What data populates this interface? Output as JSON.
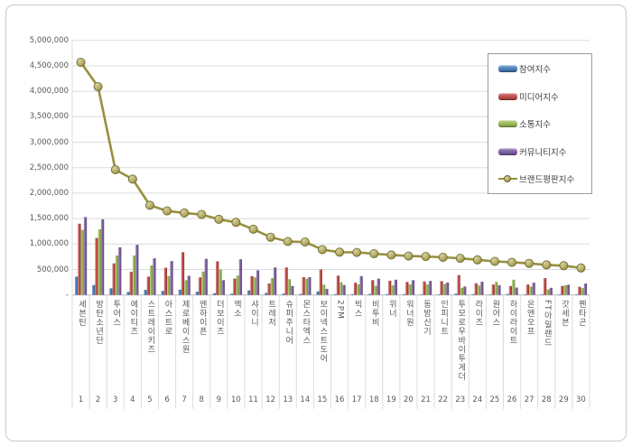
{
  "chart_data": {
    "type": "bar",
    "subtype": "clustered-bars-with-line-overlay",
    "title": "",
    "xlabel": "",
    "ylabel": "",
    "ylim": [
      0,
      5000000
    ],
    "ytick_step": 500000,
    "ytick_labels_top_down": [
      "5,000,000",
      "4,500,000",
      "4,000,000",
      "3,500,000",
      "3,000,000",
      "2,500,000",
      "2,000,000",
      "1,500,000",
      "1,000,000",
      "500,000",
      "-"
    ],
    "grid": true,
    "legend_position": "right-inside",
    "categories": [
      "세븐틴",
      "방탄소년단",
      "투어스",
      "에이티즈",
      "스트레이키즈",
      "아스트로",
      "제로베이스원",
      "엔하이픈",
      "더보이즈",
      "엑소",
      "샤이니",
      "트레저",
      "슈퍼주니어",
      "몬스타엑스",
      "보이넥스트도어",
      "2PM",
      "빅스",
      "비투비",
      "위너",
      "워너원",
      "동방신기",
      "인피니트",
      "투모로우바이투게더",
      "라이즈",
      "원어스",
      "하이라이트",
      "온앤오프",
      "FT아일랜드",
      "갓세븐",
      "펜타곤"
    ],
    "ranks": [
      1,
      2,
      3,
      4,
      5,
      6,
      7,
      8,
      9,
      10,
      11,
      12,
      13,
      14,
      15,
      16,
      17,
      18,
      19,
      20,
      21,
      22,
      23,
      24,
      25,
      26,
      27,
      28,
      29,
      30
    ],
    "series": [
      {
        "name": "참여지수",
        "color": "#4A7EBB",
        "values": [
          360000,
          195000,
          130000,
          60000,
          100000,
          80000,
          105000,
          65000,
          35000,
          25000,
          90000,
          40000,
          25000,
          20000,
          70000,
          15000,
          15000,
          20000,
          15000,
          15000,
          10000,
          10000,
          25000,
          15000,
          10000,
          20000,
          10000,
          10000,
          10000,
          10000
        ]
      },
      {
        "name": "미디어지수",
        "color": "#BE4B48",
        "values": [
          1400000,
          1120000,
          620000,
          455000,
          360000,
          535000,
          840000,
          345000,
          660000,
          320000,
          370000,
          225000,
          540000,
          350000,
          500000,
          380000,
          240000,
          290000,
          280000,
          255000,
          265000,
          270000,
          390000,
          230000,
          205000,
          175000,
          205000,
          330000,
          175000,
          160000
        ]
      },
      {
        "name": "소통지수",
        "color": "#98B954",
        "values": [
          1280000,
          1290000,
          775000,
          775000,
          580000,
          370000,
          290000,
          460000,
          500000,
          380000,
          345000,
          330000,
          310000,
          320000,
          200000,
          250000,
          210000,
          180000,
          190000,
          205000,
          205000,
          215000,
          140000,
          185000,
          255000,
          300000,
          165000,
          110000,
          190000,
          135000
        ]
      },
      {
        "name": "커뮤니티지수",
        "color": "#7D60A0",
        "values": [
          1530000,
          1485000,
          935000,
          985000,
          720000,
          665000,
          375000,
          710000,
          290000,
          700000,
          485000,
          540000,
          175000,
          350000,
          120000,
          195000,
          370000,
          320000,
          300000,
          290000,
          275000,
          245000,
          165000,
          260000,
          190000,
          145000,
          240000,
          140000,
          200000,
          225000
        ]
      }
    ],
    "line_series": {
      "name": "브랜드평판지수",
      "color": "#97903F",
      "marker_fill": "#B3AA5D",
      "marker_edge": "#6E682F",
      "values": [
        4570000,
        4090000,
        2460000,
        2275000,
        1760000,
        1650000,
        1610000,
        1580000,
        1485000,
        1425000,
        1290000,
        1135000,
        1050000,
        1040000,
        890000,
        840000,
        835000,
        810000,
        785000,
        765000,
        755000,
        740000,
        720000,
        690000,
        660000,
        640000,
        620000,
        590000,
        575000,
        530000
      ]
    },
    "legend_entries": [
      "참여지수",
      "미디어지수",
      "소통지수",
      "커뮤니티지수",
      "브랜드평판지수"
    ]
  },
  "colors": {
    "grid": "#dcdcdc",
    "axis": "#b7b7b7",
    "tick_text": "#595959",
    "frame_border": "#c9c9c9"
  }
}
